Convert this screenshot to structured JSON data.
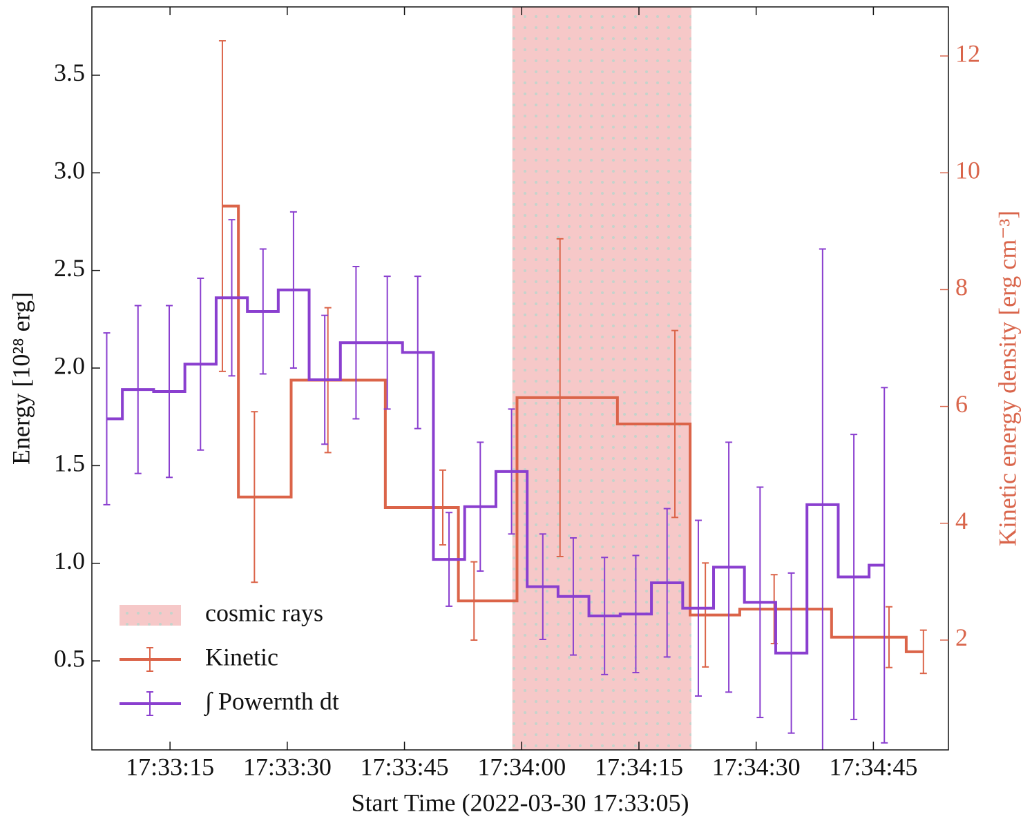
{
  "chart_data": {
    "type": "step",
    "xlabel": "Start Time (2022-03-30 17:33:05)",
    "ylabel": "Energy [10²⁸ erg]",
    "y2label": "Kinetic energy density [erg cm⁻³]",
    "xlim": [
      0,
      109.6
    ],
    "ylim": [
      0.044,
      3.85
    ],
    "y2lim": [
      0.12,
      12.84
    ],
    "xticks": [
      {
        "value": 10,
        "label": "17:33:15"
      },
      {
        "value": 25,
        "label": "17:33:30"
      },
      {
        "value": 40,
        "label": "17:33:45"
      },
      {
        "value": 55,
        "label": "17:34:00"
      },
      {
        "value": 70,
        "label": "17:34:15"
      },
      {
        "value": 85,
        "label": "17:34:30"
      },
      {
        "value": 100,
        "label": "17:34:45"
      }
    ],
    "yticks": [
      0.5,
      {
        "value": 1,
        "label": "1.0"
      },
      1.5,
      {
        "value": 2,
        "label": "2.0"
      },
      2.5,
      {
        "value": 3,
        "label": "3.0"
      },
      3.5
    ],
    "y2ticks": [
      2,
      4,
      6,
      8,
      10,
      12
    ],
    "legend": "lower left",
    "shaded": {
      "name": "cosmic rays",
      "x": [
        53.8,
        76.7
      ],
      "color": "#f6c8c8"
    },
    "series": [
      {
        "name": "Kinetic",
        "color": "#db6449",
        "axis": "y2",
        "x": [
          16.7,
          20.8,
          30.2,
          44.9,
          48.9,
          59.9,
          74.6,
          78.5,
          87.3,
          102.0,
          106.4
        ],
        "values": [
          9.43,
          4.45,
          6.45,
          4.27,
          2.67,
          6.15,
          5.7,
          2.43,
          2.53,
          2.05,
          1.8
        ],
        "errors": [
          2.83,
          1.46,
          1.24,
          0.64,
          0.67,
          2.72,
          1.6,
          0.89,
          0.59,
          0.52,
          0.37
        ]
      },
      {
        "name": "∫ Powernth dt",
        "color": "#8a3fcf",
        "x": [
          1.9,
          5.9,
          9.9,
          13.9,
          17.9,
          21.9,
          25.8,
          29.8,
          33.8,
          37.8,
          41.7,
          45.7,
          49.7,
          53.7,
          57.7,
          61.6,
          65.6,
          69.6,
          73.6,
          77.6,
          81.5,
          85.5,
          89.5,
          93.5,
          97.5,
          101.4
        ],
        "values": [
          1.74,
          1.89,
          1.88,
          2.02,
          2.36,
          2.29,
          2.4,
          1.94,
          2.13,
          2.13,
          2.08,
          1.02,
          1.29,
          1.47,
          0.88,
          0.83,
          0.73,
          0.74,
          0.9,
          0.77,
          0.98,
          0.8,
          0.54,
          1.3,
          0.93,
          0.99
        ],
        "errors": [
          0.44,
          0.43,
          0.44,
          0.44,
          0.4,
          0.32,
          0.4,
          0.33,
          0.39,
          0.34,
          0.39,
          0.24,
          0.33,
          0.32,
          0.27,
          0.3,
          0.3,
          0.3,
          0.38,
          0.45,
          0.64,
          0.59,
          0.41,
          1.31,
          0.73,
          0.91
        ]
      }
    ]
  }
}
